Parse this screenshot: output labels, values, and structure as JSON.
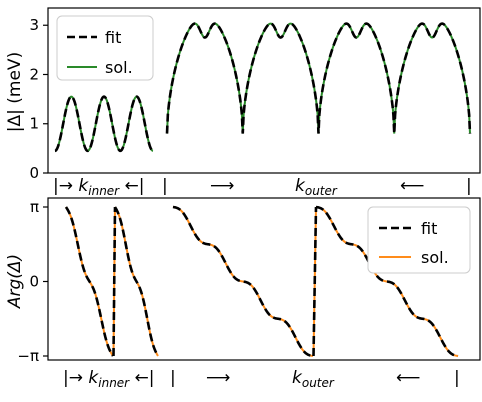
{
  "chart_data": [
    {
      "type": "line",
      "ylabel": "|Δ| (meV)",
      "ylim": [
        0,
        3.35
      ],
      "yticks": [
        "0",
        "1",
        "2",
        "3"
      ],
      "x_annotation": {
        "inner": "|→ k_inner ←|",
        "outer_left_bar": "|",
        "outer_right_arrow": "⟶",
        "outer_label": "k_outer",
        "outer_left_arrow": "⟵",
        "outer_end_bar": "|"
      },
      "legend": {
        "placement": "top-left",
        "entries": [
          "fit",
          "sol."
        ]
      },
      "colors": {
        "fit": "#000000",
        "sol": "#2a8a2a"
      },
      "segments": [
        {
          "name": "inner",
          "peaks": 3,
          "min": 0.45,
          "max": 1.55
        },
        {
          "name": "outer",
          "lobes": 4,
          "min": 0.8,
          "max": 3.2,
          "dip": 2.75
        }
      ],
      "series": [
        {
          "name": "fit",
          "style": "dashed"
        },
        {
          "name": "sol.",
          "style": "solid"
        }
      ]
    },
    {
      "type": "line",
      "ylabel": "Arg(Δ)",
      "ylim": [
        -3.1416,
        3.1416
      ],
      "yticks": [
        "π",
        "0",
        "−π"
      ],
      "x_annotation": {
        "inner": "|→ k_inner ←|",
        "outer_left_bar": "|",
        "outer_right_arrow": "⟶",
        "outer_label": "k_outer",
        "outer_left_arrow": "⟵",
        "outer_end_bar": "|"
      },
      "legend": {
        "placement": "top-right",
        "entries": [
          "fit",
          "sol."
        ]
      },
      "colors": {
        "fit": "#000000",
        "sol": "#ff8c1a"
      },
      "segments": [
        {
          "name": "inner",
          "wraps": 2
        },
        {
          "name": "outer",
          "wraps": 2,
          "plateaus_per_wrap": 4
        }
      ],
      "series": [
        {
          "name": "fit",
          "style": "dashed"
        },
        {
          "name": "sol.",
          "style": "solid"
        }
      ]
    }
  ]
}
